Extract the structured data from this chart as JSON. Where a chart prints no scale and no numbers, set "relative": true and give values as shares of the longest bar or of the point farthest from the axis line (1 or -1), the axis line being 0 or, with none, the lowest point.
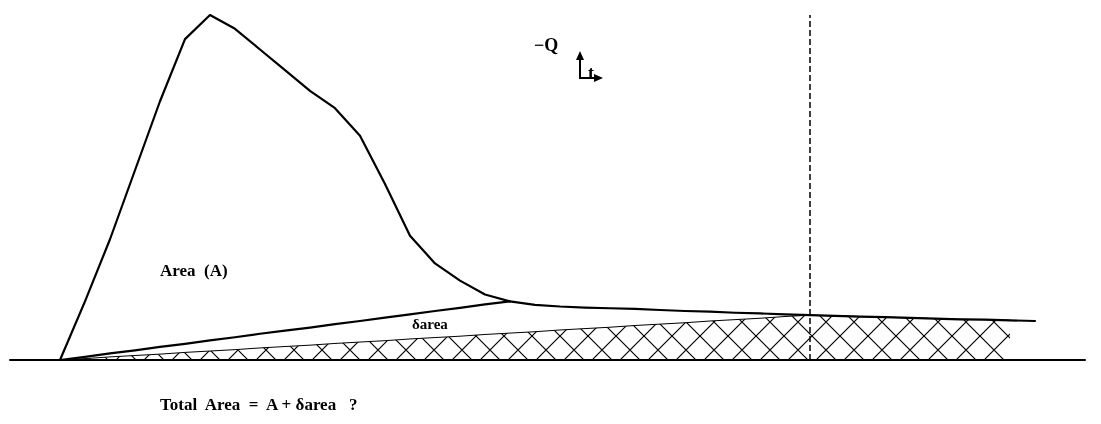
{
  "chart_data": {
    "type": "line",
    "relative": true,
    "categories": [
      null,
      null,
      null,
      null,
      null,
      null,
      null,
      null,
      null,
      null,
      null,
      null,
      null,
      null,
      null,
      null,
      null,
      null,
      null,
      null,
      null,
      null,
      null,
      null,
      null,
      null,
      null,
      null,
      null,
      null,
      null,
      null,
      null,
      null,
      null,
      null,
      null,
      null,
      null,
      null,
      null,
      null,
      null,
      null
    ],
    "series": [
      {
        "color": "#000000",
        "values": [
          null,
          null,
          0,
          0.17,
          0.35,
          0.55,
          0.75,
          0.93,
          1,
          0.96,
          0.9,
          0.84,
          0.78,
          0.73,
          0.65,
          0.51,
          0.36,
          0.28,
          0.23,
          0.19,
          0.17,
          0.16,
          0.155,
          0.152,
          0.15,
          0.148,
          0.145,
          0.142,
          0.14,
          0.137,
          0.135,
          0.132,
          0.13,
          0.128,
          0.126,
          0.124,
          0.122,
          0.12,
          0.118,
          0.117,
          0.115,
          0.113,
          null,
          null
        ]
      },
      {
        "color": "#000000",
        "values": [
          null,
          null,
          0,
          0.009,
          0.019,
          0.028,
          0.038,
          0.047,
          0.057,
          0.066,
          0.076,
          0.085,
          0.094,
          0.104,
          0.113,
          0.123,
          0.132,
          0.142,
          0.151,
          0.161,
          0.17,
          null,
          null,
          null,
          null,
          null,
          null,
          null,
          null,
          null,
          null,
          null,
          null,
          null,
          null,
          null,
          null,
          null,
          null,
          null,
          null,
          null,
          null,
          null
        ]
      },
      {
        "type": "area",
        "color": "#000000",
        "values": [
          null,
          null,
          0,
          0.004,
          0.009,
          0.013,
          0.017,
          0.022,
          0.026,
          0.03,
          0.035,
          0.039,
          0.043,
          0.048,
          0.052,
          0.056,
          0.061,
          0.065,
          0.069,
          0.074,
          0.078,
          0.082,
          0.087,
          0.091,
          0.095,
          0.1,
          0.104,
          0.108,
          0.113,
          0.117,
          0.121,
          0.126,
          0.13,
          0.128,
          0.126,
          0.124,
          0.122,
          0.12,
          0.118,
          0.117,
          0.115,
          null,
          null,
          null
        ]
      }
    ],
    "annotations": [
      "Area  (A)",
      "δarea",
      "Total  Area  =  A + δarea   ?",
      "−Q",
      "t"
    ],
    "grid": false,
    "marker": "none",
    "line_style": "solid"
  }
}
